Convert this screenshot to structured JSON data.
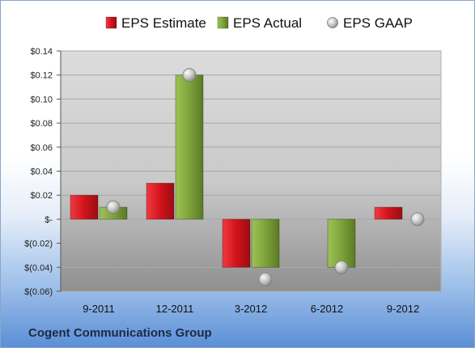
{
  "company": "Cogent Communications Group",
  "chart_data": {
    "type": "bar",
    "categories": [
      "9-2011",
      "12-2011",
      "3-2012",
      "6-2012",
      "9-2012"
    ],
    "series": [
      {
        "name": "EPS Estimate",
        "kind": "bar",
        "color": "#d3131c",
        "values": [
          0.02,
          0.03,
          -0.04,
          null,
          0.01
        ]
      },
      {
        "name": "EPS Actual",
        "kind": "bar",
        "color": "#7fa33a",
        "values": [
          0.01,
          0.12,
          -0.04,
          -0.04,
          null
        ]
      },
      {
        "name": "EPS GAAP",
        "kind": "marker",
        "color": "#c8c8c8",
        "values": [
          0.01,
          0.12,
          -0.05,
          -0.04,
          0.0
        ]
      }
    ],
    "y_ticks": [
      "$0.14",
      "$0.12",
      "$0.10",
      "$0.08",
      "$0.06",
      "$0.04",
      "$0.02",
      "$-",
      "$(0.02)",
      "$(0.04)",
      "$(0.06)"
    ],
    "ylim": [
      -0.06,
      0.14
    ],
    "grid": true,
    "legend": "top"
  }
}
